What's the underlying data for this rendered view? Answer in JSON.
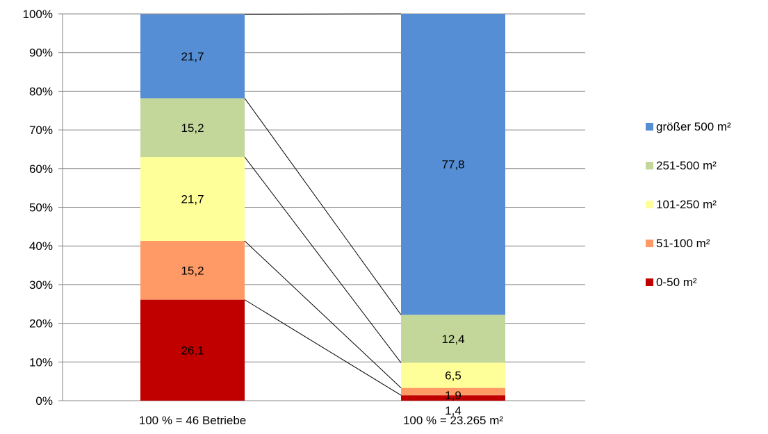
{
  "chart_data": {
    "type": "bar",
    "stacked": true,
    "percent_stacked": true,
    "categories": [
      "100 % = 46 Betriebe",
      "100 % = 23.265 m²"
    ],
    "series": [
      {
        "name": "0-50 m²",
        "values": [
          26.1,
          1.4
        ],
        "labels": [
          "26,1",
          "1,4"
        ],
        "color": "#c00000"
      },
      {
        "name": "51-100 m²",
        "values": [
          15.2,
          1.9
        ],
        "labels": [
          "15,2",
          "1,9"
        ],
        "color": "#ff9966"
      },
      {
        "name": "101-250 m²",
        "values": [
          21.7,
          6.5
        ],
        "labels": [
          "21,7",
          "6,5"
        ],
        "color": "#ffff99"
      },
      {
        "name": "251-500 m²",
        "values": [
          15.2,
          12.4
        ],
        "labels": [
          "15,2",
          "12,4"
        ],
        "color": "#c4d79b"
      },
      {
        "name": "größer 500 m²",
        "values": [
          21.7,
          77.8
        ],
        "labels": [
          "21,7",
          "77,8"
        ],
        "color": "#558ed5"
      }
    ],
    "y_ticks": [
      "0%",
      "10%",
      "20%",
      "30%",
      "40%",
      "50%",
      "60%",
      "70%",
      "80%",
      "90%",
      "100%"
    ],
    "ylim": [
      0,
      100
    ],
    "grid": true,
    "series_connector_lines": true,
    "legend_position": "right",
    "title": "",
    "xlabel": "",
    "ylabel": ""
  }
}
